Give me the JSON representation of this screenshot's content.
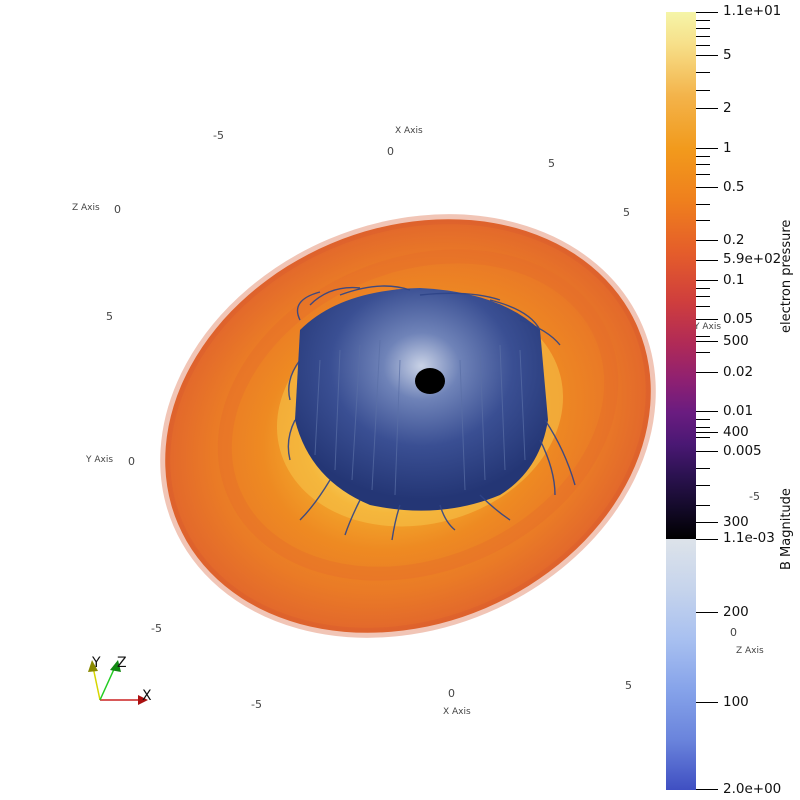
{
  "scene": {
    "axis_labels": {
      "x_axis_top": "X Axis",
      "x_axis_bottom": "X Axis",
      "z_axis_left": "Z Axis",
      "z_axis_right": "Z Axis",
      "y_axis_left": "Y Axis",
      "y_axis_right": "Y Axis"
    },
    "tick_labels": [
      "-5",
      "0",
      "5",
      "5",
      "0",
      "5",
      "0",
      "-5",
      "0",
      "-5",
      "-5",
      "0",
      "5"
    ]
  },
  "orientation_widget": {
    "x": "X",
    "y": "Y",
    "z": "Z"
  },
  "colorbars": {
    "electron_pressure": {
      "title": "electron pressure",
      "max_label": "1.1e+01",
      "min_label": "1.1e-03",
      "labels": [
        "5",
        "2",
        "1",
        "0.5",
        "0.2",
        "0.1",
        "0.05",
        "0.02",
        "0.01",
        "0.005"
      ]
    },
    "b_magnitude": {
      "title": "B Magnitude",
      "max_label": "5.9e+02",
      "min_label": "2.0e+00",
      "labels": [
        "500",
        "400",
        "300",
        "200",
        "100"
      ]
    }
  },
  "colors": {
    "disk_outer": "#e6742a",
    "disk_mid": "#f08a1f",
    "disk_inner": "#fbe07a",
    "streamlines": "#2e4488",
    "core": "#000000"
  }
}
